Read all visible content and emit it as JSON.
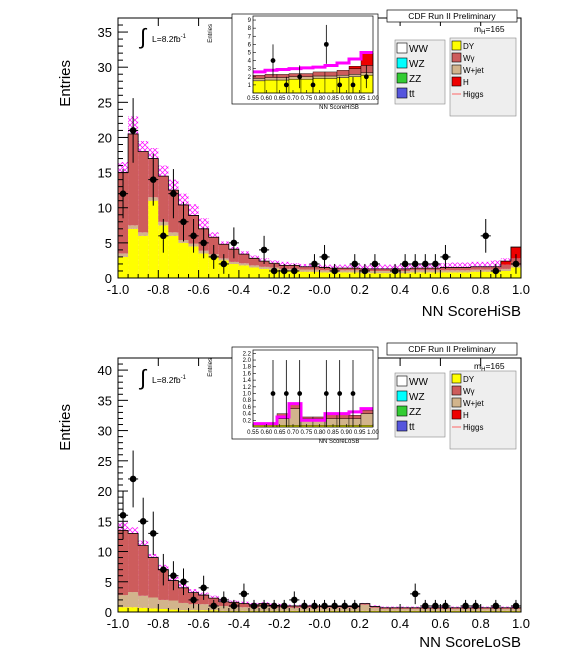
{
  "chart_data": [
    {
      "type": "bar",
      "panel": "top",
      "xlabel": "NN ScoreHiSB",
      "ylabel": "Entries",
      "xlim": [
        -1.0,
        1.0
      ],
      "ylim": [
        0,
        37
      ],
      "x_ticks": [
        "-1.0",
        "-0.8",
        "-0.6",
        "-0.4",
        "-0.2",
        "-0.0",
        "0.2",
        "0.4",
        "0.6",
        "0.8",
        "1.0"
      ],
      "y_ticks": [
        "0",
        "5",
        "10",
        "15",
        "20",
        "25",
        "30",
        "35"
      ],
      "lumi_text": "L=8.2fb",
      "lumi_sup": "-1",
      "header": "CDF Run II Preliminary",
      "mass_label": "m",
      "mass_sub": "H",
      "mass_value": "=165",
      "stack_series": [
        "DY",
        "W+jet",
        "Wγ"
      ],
      "stack_series_colors": [
        "#ffff00",
        "#d2b48c",
        "#cd5c5c"
      ],
      "stack_bins": {
        "n": 40,
        "DY": [
          3.0,
          7.0,
          6.0,
          11.0,
          7.5,
          6.0,
          5.0,
          4.5,
          3.5,
          3.0,
          2.5,
          2.0,
          1.8,
          1.5,
          1.3,
          1.2,
          1.0,
          1.0,
          0.9,
          0.9,
          0.8,
          0.8,
          0.8,
          0.8,
          0.7,
          0.7,
          0.7,
          0.7,
          0.7,
          0.8,
          0.8,
          0.8,
          0.8,
          0.8,
          0.8,
          0.9,
          0.9,
          0.9,
          1.0,
          1.5
        ],
        "W+jet": [
          0.5,
          0.5,
          0.5,
          0.5,
          0.5,
          0.5,
          0.4,
          0.4,
          0.4,
          0.4,
          0.3,
          0.3,
          0.3,
          0.3,
          0.3,
          0.3,
          0.3,
          0.3,
          0.3,
          0.3,
          0.3,
          0.3,
          0.3,
          0.3,
          0.3,
          0.3,
          0.3,
          0.3,
          0.3,
          0.3,
          0.3,
          0.3,
          0.3,
          0.3,
          0.3,
          0.3,
          0.3,
          0.3,
          0.3,
          0.3
        ],
        "Wγ": [
          11.5,
          13.0,
          11.5,
          5.5,
          6.5,
          6.0,
          5.0,
          4.0,
          3.1,
          2.4,
          2.0,
          1.8,
          1.3,
          1.0,
          0.8,
          0.6,
          0.5,
          0.5,
          0.4,
          0.4,
          0.4,
          0.3,
          0.3,
          0.3,
          0.3,
          0.3,
          0.3,
          0.3,
          0.3,
          0.3,
          0.3,
          0.3,
          0.4,
          0.4,
          0.4,
          0.4,
          0.4,
          0.4,
          0.6,
          1.0
        ],
        "H": [
          0,
          0,
          0,
          0,
          0,
          0,
          0,
          0,
          0,
          0,
          0,
          0,
          0,
          0,
          0,
          0,
          0,
          0,
          0,
          0,
          0,
          0,
          0,
          0,
          0,
          0,
          0,
          0,
          0,
          0,
          0,
          0,
          0,
          0,
          0,
          0,
          0,
          0,
          0.5,
          1.6
        ],
        "band_top": [
          16.5,
          23.0,
          19.5,
          18.5,
          16.0,
          14.0,
          12.0,
          10.5,
          8.5,
          6.5,
          5.2,
          4.4,
          3.8,
          3.2,
          2.8,
          2.5,
          2.3,
          2.1,
          2.0,
          1.9,
          1.9,
          1.9,
          1.9,
          1.9,
          1.9,
          1.9,
          1.9,
          1.9,
          2.0,
          2.0,
          2.0,
          2.1,
          2.1,
          2.2,
          2.2,
          2.3,
          2.3,
          2.5,
          2.8,
          3.6
        ]
      },
      "data_points": {
        "x": [
          -0.975,
          -0.925,
          -0.825,
          -0.775,
          -0.725,
          -0.675,
          -0.625,
          -0.575,
          -0.525,
          -0.475,
          -0.425,
          -0.275,
          -0.225,
          -0.175,
          -0.125,
          -0.025,
          0.025,
          0.075,
          0.175,
          0.225,
          0.275,
          0.375,
          0.425,
          0.475,
          0.525,
          0.575,
          0.625,
          0.825,
          0.875,
          0.975
        ],
        "y": [
          12,
          21,
          14,
          6,
          12,
          8,
          6,
          5,
          3,
          2,
          5,
          4,
          1,
          1,
          1,
          2,
          3,
          1,
          2,
          1,
          2,
          1,
          2,
          2,
          2,
          2,
          3,
          6,
          1,
          2
        ],
        "err": [
          3.5,
          4.6,
          3.7,
          2.4,
          3.5,
          2.8,
          2.4,
          2.2,
          1.7,
          1.4,
          2.2,
          2.0,
          1.0,
          1.0,
          1.0,
          1.4,
          1.7,
          1.0,
          1.4,
          1.0,
          1.4,
          1.0,
          1.4,
          1.4,
          1.4,
          1.4,
          1.7,
          2.4,
          1.0,
          1.4
        ]
      },
      "inset": {
        "xlabel": "NN ScoreHiSB",
        "ylabel": "Entries",
        "xlim": [
          0.55,
          1.0
        ],
        "ylim": [
          0,
          9.5
        ],
        "x_ticks": [
          "0.55",
          "0.60",
          "0.65",
          "0.70",
          "0.75",
          "0.80",
          "0.85",
          "0.90",
          "0.95",
          "1.00"
        ],
        "y_ticks": [
          "1",
          "2",
          "3",
          "4",
          "5",
          "6",
          "7",
          "8",
          "9"
        ],
        "dy": [
          1.5,
          1.6,
          1.6,
          1.7,
          1.7,
          1.8,
          1.8,
          1.9,
          2.0,
          2.2
        ],
        "wjet": [
          0.3,
          0.3,
          0.3,
          0.3,
          0.3,
          0.3,
          0.3,
          0.3,
          0.3,
          0.3
        ],
        "wgamma": [
          0.4,
          0.4,
          0.4,
          0.4,
          0.4,
          0.5,
          0.5,
          0.6,
          0.7,
          0.9
        ],
        "h": [
          0,
          0,
          0,
          0,
          0,
          0,
          0,
          0,
          0.3,
          1.5
        ],
        "band_top": [
          2.6,
          2.8,
          2.9,
          3.0,
          3.1,
          3.2,
          3.4,
          3.7,
          4.2,
          5.0
        ],
        "data_x": [
          0.625,
          0.675,
          0.725,
          0.775,
          0.825,
          0.875,
          0.925,
          0.975
        ],
        "data_y": [
          4,
          1,
          2,
          1,
          6,
          1,
          1,
          2
        ],
        "data_err": [
          2.0,
          1.0,
          1.4,
          1.0,
          2.4,
          1.0,
          1.0,
          1.4
        ]
      }
    },
    {
      "type": "bar",
      "panel": "bottom",
      "xlabel": "NN ScoreLoSB",
      "ylabel": "Entries",
      "xlim": [
        -1.0,
        1.0
      ],
      "ylim": [
        0,
        42
      ],
      "x_ticks": [
        "-1.0",
        "-0.8",
        "-0.6",
        "-0.4",
        "-0.2",
        "-0.0",
        "0.2",
        "0.4",
        "0.6",
        "0.8",
        "1.0"
      ],
      "y_ticks": [
        "0",
        "5",
        "10",
        "15",
        "20",
        "25",
        "30",
        "35",
        "40"
      ],
      "lumi_text": "L=8.2fb",
      "lumi_sup": "-1",
      "header": "CDF Run II Preliminary",
      "mass_label": "m",
      "mass_sub": "H",
      "mass_value": "=165",
      "stack_bins": {
        "n": 40,
        "DY": [
          0.8,
          0.8,
          0.7,
          0.6,
          0.5,
          0.4,
          0.3,
          0.3,
          0.3,
          0.3,
          0.2,
          0.2,
          0.2,
          0.2,
          0.2,
          0.2,
          0.2,
          0.2,
          0.2,
          0.2,
          0.2,
          0.2,
          0.2,
          0.2,
          0.2,
          0.2,
          0.2,
          0.2,
          0.2,
          0.2,
          0.2,
          0.2,
          0.2,
          0.2,
          0.2,
          0.2,
          0.2,
          0.2,
          0.2,
          0.2
        ],
        "W+jet": [
          2.0,
          2.5,
          2.0,
          1.8,
          1.5,
          1.5,
          1.2,
          1.0,
          1.0,
          0.8,
          0.8,
          0.6,
          0.6,
          0.5,
          0.8,
          0.5,
          0.5,
          0.5,
          0.5,
          0.5,
          0.5,
          0.5,
          0.5,
          0.5,
          1.0,
          0.5,
          0.3,
          0.3,
          0.3,
          0.3,
          0.3,
          0.3,
          0.3,
          0.3,
          0.3,
          0.3,
          0.3,
          0.3,
          0.3,
          0.3
        ],
        "Wγ": [
          10.7,
          9.7,
          8.3,
          6.6,
          5.0,
          3.3,
          2.5,
          1.9,
          1.5,
          1.2,
          0.7,
          0.8,
          0.6,
          0.5,
          0.4,
          0.4,
          0.3,
          0.3,
          0.3,
          0.3,
          0.2,
          0.2,
          0.2,
          0.2,
          0.2,
          0.2,
          0.2,
          0.2,
          0.2,
          0.2,
          0.2,
          0.2,
          0.2,
          0.2,
          0.2,
          0.2,
          0.2,
          0.2,
          0.2,
          0.2
        ],
        "band_top": [
          14.8,
          14.0,
          11.8,
          9.6,
          7.8,
          5.8,
          4.6,
          3.8,
          3.2,
          2.7,
          2.2,
          1.9,
          1.7,
          1.5,
          1.6,
          1.4,
          1.3,
          1.2,
          1.2,
          1.2,
          1.1,
          1.1,
          1.1,
          1.1,
          1.5,
          1.1,
          0.9,
          0.9,
          0.9,
          0.9,
          0.9,
          0.9,
          0.9,
          0.9,
          0.9,
          0.9,
          0.9,
          0.9,
          0.9,
          0.9
        ]
      },
      "data_points": {
        "x": [
          -0.975,
          -0.925,
          -0.875,
          -0.825,
          -0.775,
          -0.725,
          -0.675,
          -0.625,
          -0.575,
          -0.525,
          -0.475,
          -0.425,
          -0.375,
          -0.325,
          -0.275,
          -0.225,
          -0.175,
          -0.125,
          -0.075,
          -0.025,
          0.025,
          0.075,
          0.125,
          0.175,
          0.475,
          0.525,
          0.575,
          0.625,
          0.725,
          0.775,
          0.875,
          0.975
        ],
        "y": [
          16,
          22,
          15,
          13,
          7,
          6,
          5,
          2,
          4,
          1,
          2,
          1,
          3,
          1,
          1,
          1,
          1,
          2,
          1,
          1,
          1,
          1,
          1,
          1,
          3,
          1,
          1,
          1,
          1,
          1,
          1,
          1
        ],
        "err": [
          4.0,
          4.7,
          3.9,
          3.6,
          2.6,
          2.4,
          2.2,
          1.4,
          2.0,
          1.0,
          1.4,
          1.0,
          1.7,
          1.0,
          1.0,
          1.0,
          1.0,
          1.4,
          1.0,
          1.0,
          1.0,
          1.0,
          1.0,
          1.0,
          1.7,
          1.0,
          1.0,
          1.0,
          1.0,
          1.0,
          1.0,
          1.0
        ]
      },
      "inset": {
        "xlabel": "NN ScoreLoSB",
        "ylabel": "Entries",
        "xlim": [
          0.55,
          1.0
        ],
        "ylim": [
          0,
          2.3
        ],
        "x_ticks": [
          "0.55",
          "0.60",
          "0.65",
          "0.70",
          "0.75",
          "0.80",
          "0.85",
          "0.90",
          "0.95",
          "1.00"
        ],
        "y_ticks": [
          "0.2",
          "0.4",
          "0.6",
          "0.8",
          "1.0",
          "1.2",
          "1.4",
          "1.6",
          "1.8",
          "2.0",
          "2.2"
        ],
        "dy": [
          0.05,
          0.05,
          0.05,
          0.05,
          0.05,
          0.05,
          0.05,
          0.05,
          0.05,
          0.05
        ],
        "wjet": [
          0,
          0,
          0.2,
          0.5,
          0.2,
          0.2,
          0.2,
          0.2,
          0.2,
          0.35
        ],
        "wgamma": [
          0.05,
          0.05,
          0.15,
          0.15,
          0.05,
          0.05,
          0.15,
          0.15,
          0.1,
          0.1
        ],
        "h": [
          0,
          0,
          0,
          0,
          0,
          0,
          0,
          0,
          0,
          0
        ],
        "band_top": [
          0.1,
          0.1,
          0.3,
          0.7,
          0.2,
          0.2,
          0.4,
          0.4,
          0.45,
          0.55
        ],
        "data_x": [
          0.625,
          0.675,
          0.725,
          0.825,
          0.875,
          0.925
        ],
        "data_y": [
          1,
          1,
          1,
          1,
          1,
          1
        ],
        "data_err": [
          1.0,
          1.0,
          1.0,
          1.0,
          1.0,
          1.0
        ]
      }
    }
  ],
  "legend": {
    "left": [
      {
        "label": "WW",
        "color": "#ffffff"
      },
      {
        "label": "WZ",
        "color": "#00ffff"
      },
      {
        "label": "ZZ",
        "color": "#33cc33"
      },
      {
        "label": "tt",
        "color": "#5555dd"
      }
    ],
    "right": [
      {
        "label": "DY",
        "color": "#ffff00"
      },
      {
        "label": "Wγ",
        "color": "#cd5c5c"
      },
      {
        "label": "W+jet",
        "color": "#d2b48c"
      },
      {
        "label": "H",
        "color": "#ee0000"
      },
      {
        "label": "Higgs",
        "color": "#ff6666"
      }
    ]
  },
  "colors": {
    "band": "#ff00ff",
    "axes": "#000000",
    "higgs_line": "#ff6666",
    "data": "#000000"
  }
}
